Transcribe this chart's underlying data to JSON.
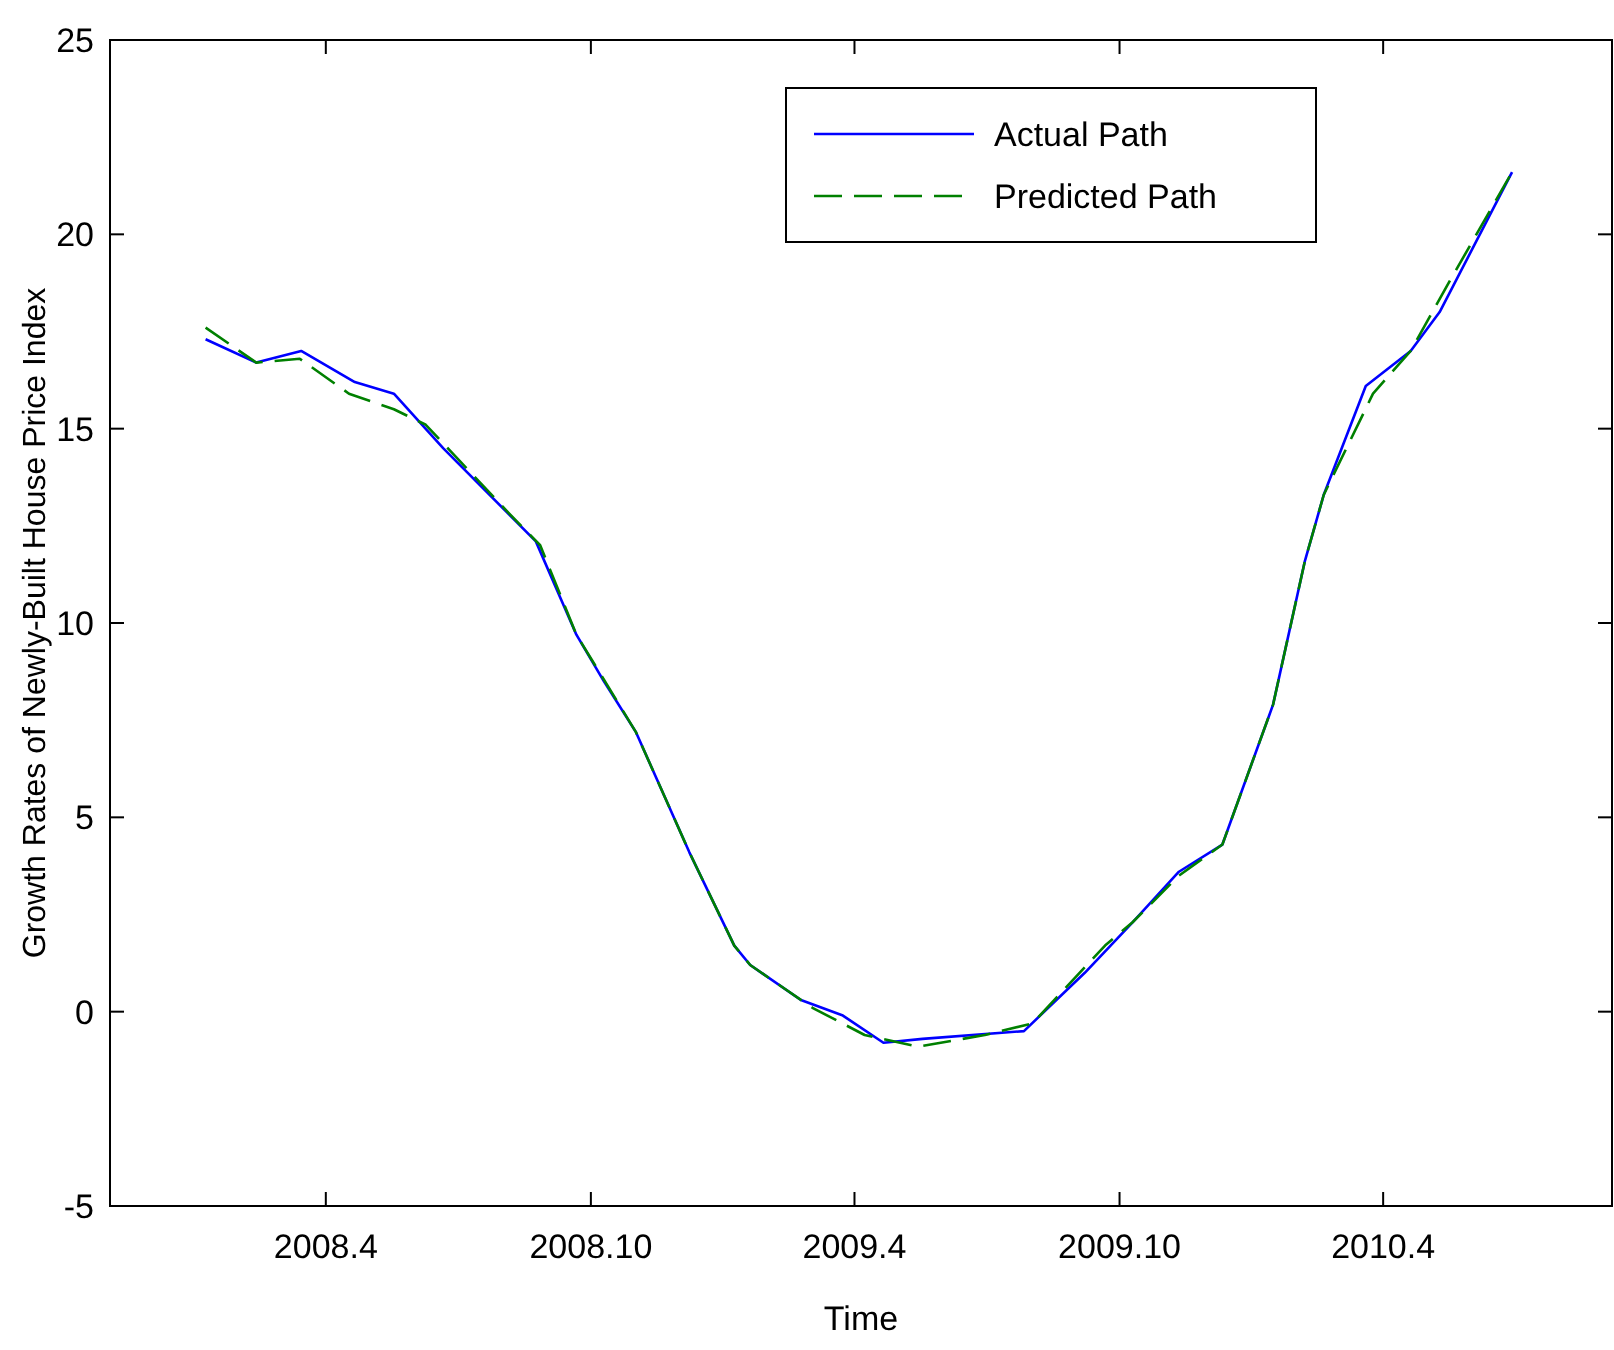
{
  "chart_data": {
    "type": "line",
    "xlabel": "Time",
    "ylabel": "Growth Rates of Newly-Built House Price Index",
    "xlim": [
      "2007-11-04",
      "2010-09-06"
    ],
    "xticks": [
      {
        "value": "2008-04",
        "label": "2008.4"
      },
      {
        "value": "2008-10",
        "label": "2008.10"
      },
      {
        "value": "2009-04",
        "label": "2009.4"
      },
      {
        "value": "2009-10",
        "label": "2009.10"
      },
      {
        "value": "2010-04",
        "label": "2010.4"
      }
    ],
    "ylim": [
      -5,
      25
    ],
    "yticks": [
      -5,
      0,
      5,
      10,
      15,
      20,
      25
    ],
    "grid": false,
    "legend": "top right",
    "series": [
      {
        "name": "Actual Path",
        "color": "#0000ff",
        "line_style": "solid",
        "x": [
          "2008-01-09",
          "2008-02-13",
          "2008-03-15",
          "2008-04-21",
          "2008-05-18",
          "2008-06-21",
          "2008-08-24",
          "2008-09-21",
          "2008-10-10",
          "2008-11-01",
          "2008-12-08",
          "2009-01-08",
          "2009-01-19",
          "2009-02-23",
          "2009-03-24",
          "2009-04-21",
          "2009-05-18",
          "2009-07-27",
          "2009-09-07",
          "2009-10-10",
          "2009-11-11",
          "2009-12-11",
          "2010-01-15",
          "2010-02-06",
          "2010-02-19",
          "2010-03-20",
          "2010-04-20",
          "2010-05-10",
          "2010-06-29"
        ],
        "values": [
          17.3,
          16.7,
          17.0,
          16.2,
          15.9,
          14.5,
          12.1,
          9.7,
          8.5,
          7.2,
          4.1,
          1.7,
          1.2,
          0.3,
          -0.1,
          -0.8,
          -0.7,
          -0.5,
          1.0,
          2.3,
          3.6,
          4.3,
          7.9,
          11.6,
          13.3,
          16.1,
          17.0,
          18.0,
          21.6
        ]
      },
      {
        "name": "Predicted Path",
        "color": "#008000",
        "line_style": "dashed",
        "x": [
          "2008-01-09",
          "2008-02-13",
          "2008-03-14",
          "2008-04-17",
          "2008-05-18",
          "2008-06-09",
          "2008-08-06",
          "2008-08-27",
          "2008-09-21",
          "2008-11-01",
          "2008-12-08",
          "2009-01-08",
          "2009-01-19",
          "2009-03-03",
          "2009-04-08",
          "2009-05-15",
          "2009-06-30",
          "2009-08-02",
          "2009-09-21",
          "2009-10-10",
          "2009-11-11",
          "2009-12-11",
          "2010-01-15",
          "2010-02-06",
          "2010-02-19",
          "2010-03-25",
          "2010-04-20",
          "2010-05-17",
          "2010-06-29"
        ],
        "values": [
          17.6,
          16.7,
          16.8,
          15.9,
          15.5,
          15.1,
          12.8,
          12.0,
          9.7,
          7.2,
          4.1,
          1.7,
          1.2,
          0.1,
          -0.6,
          -0.9,
          -0.6,
          -0.3,
          1.7,
          2.3,
          3.5,
          4.3,
          7.9,
          11.6,
          13.3,
          15.9,
          17.0,
          18.8,
          21.6
        ]
      }
    ]
  }
}
